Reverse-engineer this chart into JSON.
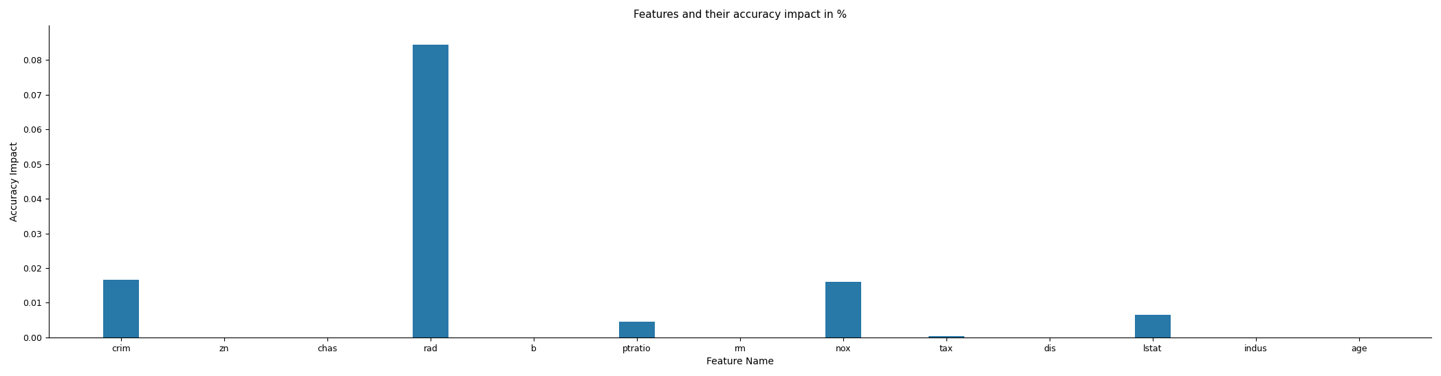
{
  "title": "Features and their accuracy impact in %",
  "xlabel": "Feature Name",
  "ylabel": "Accuracy Impact",
  "categories": [
    "crim",
    "zn",
    "chas",
    "rad",
    "b",
    "ptratio",
    "rm",
    "nox",
    "tax",
    "dis",
    "lstat",
    "indus",
    "age"
  ],
  "values": [
    0.0167,
    5e-05,
    5e-05,
    0.0845,
    5e-05,
    0.0045,
    5e-05,
    0.016,
    0.0003,
    5e-05,
    0.0065,
    5e-05,
    5e-05
  ],
  "bar_color": "#2878a8",
  "ylim": [
    0,
    0.09
  ],
  "yticks": [
    0.0,
    0.01,
    0.02,
    0.03,
    0.04,
    0.05,
    0.06,
    0.07,
    0.08
  ],
  "background_color": "#ffffff",
  "bar_width": 0.35,
  "figwidth": 20.95,
  "figheight": 5.47
}
